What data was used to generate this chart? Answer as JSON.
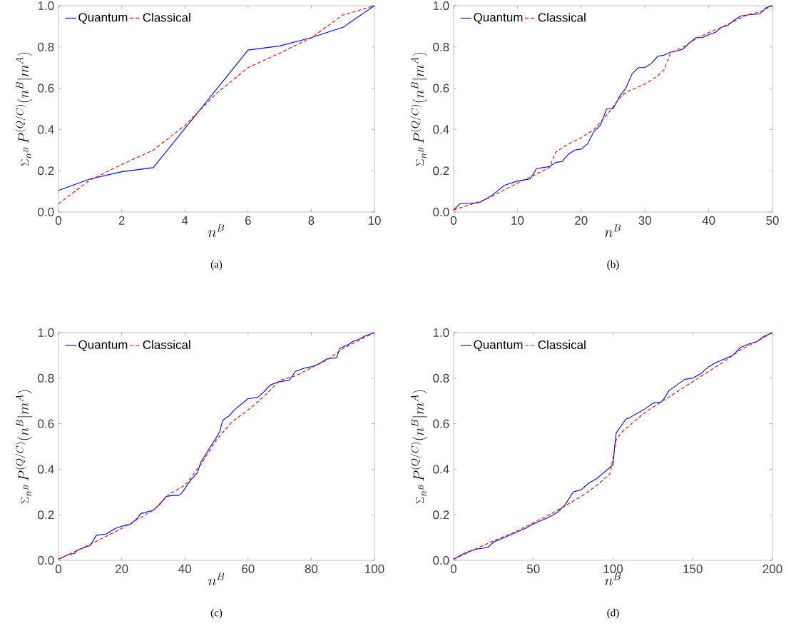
{
  "chart_data": [
    {
      "type": "line",
      "xlabel": "n^B",
      "ylabel": "\\sum_{n^B} P^{(Q/C)}(n^B|m^A)",
      "annotations": [
        "(a)"
      ],
      "xlim": [
        0,
        10
      ],
      "ylim": [
        0,
        1
      ],
      "xticks": [
        0,
        2,
        4,
        6,
        8,
        10
      ],
      "yticks": [
        {
          "value": 0,
          "label": "0.0"
        },
        {
          "value": 0.2,
          "label": "0.2"
        },
        {
          "value": 0.4,
          "label": "0.4"
        },
        {
          "value": 0.6,
          "label": "0.6"
        },
        {
          "value": 0.8,
          "label": "0.8"
        },
        {
          "value": 1,
          "label": "1.0"
        }
      ],
      "legend": "top left",
      "marker": "none",
      "series": [
        {
          "name": "Quantum",
          "color": "#0000ff",
          "line_style": "solid",
          "x": [
            0,
            1,
            2,
            3,
            6,
            7,
            8,
            9,
            10
          ],
          "values": [
            0.105,
            0.16,
            0.195,
            0.215,
            0.785,
            0.805,
            0.845,
            0.895,
            1.0
          ]
        },
        {
          "name": "Classical",
          "color": "#ff0000",
          "line_style": "dashed",
          "x": [
            0,
            1,
            2,
            3,
            4,
            5,
            6,
            7,
            8,
            9,
            10
          ],
          "values": [
            0.04,
            0.155,
            0.23,
            0.3,
            0.42,
            0.575,
            0.7,
            0.77,
            0.845,
            0.955,
            1.0
          ]
        }
      ]
    },
    {
      "type": "line",
      "xlabel": "n^B",
      "ylabel": "\\sum_{n^B} P^{(Q/C)}(n^B|m^A)",
      "annotations": [
        "(b)"
      ],
      "xlim": [
        0,
        50
      ],
      "ylim": [
        0,
        1
      ],
      "xticks": [
        0,
        10,
        20,
        30,
        40,
        50
      ],
      "yticks": [
        {
          "value": 0,
          "label": "0.0"
        },
        {
          "value": 0.2,
          "label": "0.2"
        },
        {
          "value": 0.4,
          "label": "0.4"
        },
        {
          "value": 0.6,
          "label": "0.6"
        },
        {
          "value": 0.8,
          "label": "0.8"
        },
        {
          "value": 1,
          "label": "1.0"
        }
      ],
      "legend": "top left",
      "marker": "none",
      "series": [
        {
          "name": "Quantum",
          "color": "#0000ff",
          "line_style": "solid",
          "x": [
            0,
            1,
            4,
            6,
            8,
            10,
            12,
            13,
            15,
            16,
            17,
            18,
            19,
            20,
            21,
            22,
            23,
            24,
            25,
            26,
            27,
            28,
            29,
            30,
            31,
            32,
            33,
            34,
            35,
            36,
            37,
            38,
            39,
            40,
            41,
            42,
            43,
            44,
            45,
            46,
            48,
            49,
            50
          ],
          "values": [
            0.01,
            0.04,
            0.045,
            0.08,
            0.13,
            0.15,
            0.16,
            0.21,
            0.22,
            0.24,
            0.245,
            0.28,
            0.3,
            0.305,
            0.33,
            0.39,
            0.42,
            0.5,
            0.5,
            0.56,
            0.6,
            0.67,
            0.7,
            0.7,
            0.72,
            0.755,
            0.76,
            0.775,
            0.78,
            0.79,
            0.82,
            0.845,
            0.845,
            0.86,
            0.87,
            0.895,
            0.905,
            0.93,
            0.95,
            0.955,
            0.96,
            0.99,
            1.0
          ]
        },
        {
          "name": "Classical",
          "color": "#ff0000",
          "line_style": "dashed",
          "x": [
            0,
            5,
            10,
            15,
            16,
            18,
            20,
            22,
            24,
            26,
            27,
            30,
            32,
            33,
            34,
            36,
            38,
            40,
            42,
            44,
            46,
            48,
            50
          ],
          "values": [
            0.01,
            0.06,
            0.14,
            0.215,
            0.29,
            0.33,
            0.36,
            0.4,
            0.47,
            0.55,
            0.58,
            0.62,
            0.66,
            0.69,
            0.77,
            0.8,
            0.84,
            0.87,
            0.895,
            0.925,
            0.955,
            0.97,
            1.0
          ]
        }
      ]
    },
    {
      "type": "line",
      "xlabel": "n^B",
      "ylabel": "\\sum_{n^B} P^{(Q/C)}(n^B|m^A)",
      "annotations": [
        "(c)"
      ],
      "xlim": [
        0,
        100
      ],
      "ylim": [
        0,
        1
      ],
      "xticks": [
        0,
        20,
        40,
        60,
        80,
        100
      ],
      "yticks": [
        {
          "value": 0,
          "label": "0.0"
        },
        {
          "value": 0.2,
          "label": "0.2"
        },
        {
          "value": 0.4,
          "label": "0.4"
        },
        {
          "value": 0.6,
          "label": "0.6"
        },
        {
          "value": 0.8,
          "label": "0.8"
        },
        {
          "value": 1,
          "label": "1.0"
        }
      ],
      "legend": "top left",
      "marker": "none",
      "series": [
        {
          "name": "Quantum",
          "color": "#0000ff",
          "line_style": "solid",
          "x": [
            0,
            3,
            5,
            6,
            10,
            12,
            15,
            18,
            20,
            23,
            25,
            26,
            30,
            32,
            34,
            36,
            38,
            39,
            42,
            44,
            45,
            47,
            50,
            51,
            52,
            54,
            56,
            60,
            63,
            65,
            67,
            70,
            73,
            75,
            78,
            80,
            82,
            85,
            88,
            89,
            92,
            93,
            95,
            97,
            100
          ],
          "values": [
            0.005,
            0.025,
            0.03,
            0.045,
            0.065,
            0.11,
            0.115,
            0.14,
            0.15,
            0.16,
            0.185,
            0.205,
            0.22,
            0.245,
            0.28,
            0.285,
            0.285,
            0.295,
            0.355,
            0.385,
            0.43,
            0.475,
            0.54,
            0.565,
            0.615,
            0.635,
            0.665,
            0.71,
            0.715,
            0.74,
            0.77,
            0.785,
            0.79,
            0.83,
            0.845,
            0.85,
            0.86,
            0.885,
            0.89,
            0.93,
            0.95,
            0.96,
            0.97,
            0.985,
            1.0
          ]
        },
        {
          "name": "Classical",
          "color": "#ff0000",
          "line_style": "dashed",
          "x": [
            0,
            10,
            20,
            30,
            35,
            40,
            45,
            50,
            55,
            60,
            65,
            70,
            75,
            80,
            85,
            90,
            95,
            100
          ],
          "values": [
            0.005,
            0.07,
            0.14,
            0.22,
            0.29,
            0.33,
            0.42,
            0.53,
            0.61,
            0.66,
            0.72,
            0.79,
            0.81,
            0.845,
            0.88,
            0.93,
            0.965,
            1.0
          ]
        }
      ]
    },
    {
      "type": "line",
      "xlabel": "n^B",
      "ylabel": "\\sum_{n^B} P^{(Q/C)}(n^B|m^A)",
      "annotations": [
        "(d)"
      ],
      "xlim": [
        0,
        200
      ],
      "ylim": [
        0,
        1
      ],
      "xticks": [
        0,
        50,
        100,
        150,
        200
      ],
      "yticks": [
        {
          "value": 0,
          "label": "0.0"
        },
        {
          "value": 0.2,
          "label": "0.2"
        },
        {
          "value": 0.4,
          "label": "0.4"
        },
        {
          "value": 0.6,
          "label": "0.6"
        },
        {
          "value": 0.8,
          "label": "0.8"
        },
        {
          "value": 1,
          "label": "1.0"
        }
      ],
      "legend": "top left",
      "marker": "none",
      "series": [
        {
          "name": "Quantum",
          "color": "#0000ff",
          "line_style": "solid",
          "x": [
            0,
            5,
            10,
            15,
            20,
            22,
            25,
            30,
            40,
            45,
            50,
            55,
            60,
            65,
            70,
            75,
            80,
            85,
            90,
            95,
            100,
            101,
            102,
            105,
            108,
            110,
            115,
            120,
            125,
            130,
            132,
            135,
            140,
            145,
            150,
            155,
            160,
            165,
            170,
            175,
            180,
            185,
            190,
            195,
            200
          ],
          "values": [
            0.005,
            0.025,
            0.04,
            0.05,
            0.055,
            0.06,
            0.08,
            0.095,
            0.125,
            0.14,
            0.16,
            0.175,
            0.19,
            0.21,
            0.245,
            0.3,
            0.31,
            0.34,
            0.36,
            0.39,
            0.42,
            0.5,
            0.56,
            0.59,
            0.62,
            0.625,
            0.645,
            0.665,
            0.69,
            0.695,
            0.71,
            0.745,
            0.77,
            0.795,
            0.8,
            0.82,
            0.85,
            0.87,
            0.885,
            0.9,
            0.935,
            0.95,
            0.96,
            0.985,
            1.0
          ]
        },
        {
          "name": "Classical",
          "color": "#ff0000",
          "line_style": "dashed",
          "x": [
            0,
            20,
            40,
            60,
            80,
            90,
            98,
            100,
            102,
            105,
            120,
            130,
            140,
            150,
            160,
            170,
            180,
            190,
            200
          ],
          "values": [
            0.005,
            0.07,
            0.13,
            0.2,
            0.28,
            0.33,
            0.38,
            0.45,
            0.53,
            0.56,
            0.65,
            0.695,
            0.74,
            0.785,
            0.83,
            0.875,
            0.925,
            0.96,
            1.0
          ]
        }
      ]
    }
  ]
}
